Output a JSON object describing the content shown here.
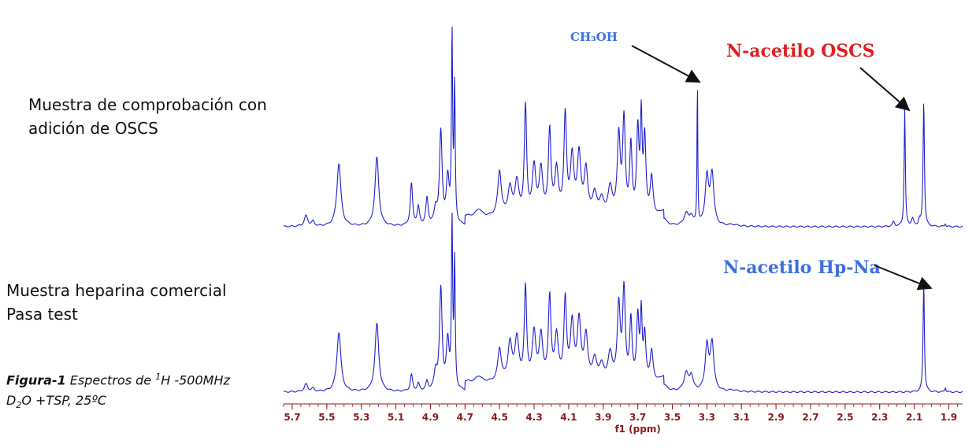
{
  "samples": [
    {
      "line1": "Muestra de comprobación con",
      "line2": "adición de OSCS"
    },
    {
      "line1": "Muestra heparina comercial",
      "line2": "Pasa test"
    }
  ],
  "caption": {
    "bold": "Figura-1",
    "text1": " Espectros de ",
    "sup": "1",
    "text2": "H -500MHz",
    "line2a": "D",
    "sub": "2",
    "line2b": "O +TSP,  25ºC"
  },
  "colors": {
    "spectrum": "#1f1fd0",
    "axis": "#8b1a1a",
    "red_annotation": "#e02020",
    "blue_annotation": "#3b6fe0"
  },
  "chart_data": {
    "type": "line",
    "xlabel": "f1 (ppm)",
    "xlim": [
      5.75,
      1.82
    ],
    "reversed_x_axis": true,
    "tick_labels": [
      "5.7",
      "5.5",
      "5.3",
      "5.1",
      "4.9",
      "4.7",
      "4.5",
      "4.3",
      "4.1",
      "3.9",
      "3.7",
      "3.5",
      "3.3",
      "3.1",
      "2.9",
      "2.7",
      "2.5",
      "2.3",
      "2.1",
      "1.9"
    ],
    "annotations": [
      {
        "text": "CH₃OH",
        "ppm": 3.35,
        "spectrum": "top",
        "color": "#3b6fe0"
      },
      {
        "text": "N-acetilo OSCS",
        "ppm": 2.15,
        "spectrum": "top",
        "color": "#e02020"
      },
      {
        "text": "N-acetilo Hp-Na",
        "ppm": 2.04,
        "spectrum": "bottom",
        "color": "#3b6fe0"
      }
    ],
    "series": [
      {
        "peaks": [
          [
            5.62,
            0.07,
            0.012
          ],
          [
            5.58,
            0.03,
            0.01
          ],
          [
            5.43,
            0.42,
            0.014
          ],
          [
            5.21,
            0.46,
            0.013
          ],
          [
            5.01,
            0.28,
            0.008
          ],
          [
            4.97,
            0.12,
            0.008
          ],
          [
            4.92,
            0.18,
            0.008
          ],
          [
            4.87,
            0.1,
            0.01
          ],
          [
            4.84,
            0.62,
            0.009
          ],
          [
            4.8,
            0.3,
            0.01
          ],
          [
            4.775,
            1.25,
            0.004
          ],
          [
            4.76,
            0.9,
            0.004
          ],
          [
            4.62,
            0.05,
            0.02
          ],
          [
            4.5,
            0.3,
            0.012
          ],
          [
            4.44,
            0.18,
            0.014
          ],
          [
            4.4,
            0.22,
            0.014
          ],
          [
            4.35,
            0.72,
            0.008
          ],
          [
            4.3,
            0.32,
            0.012
          ],
          [
            4.26,
            0.3,
            0.012
          ],
          [
            4.21,
            0.56,
            0.009
          ],
          [
            4.17,
            0.3,
            0.012
          ],
          [
            4.12,
            0.66,
            0.009
          ],
          [
            4.08,
            0.38,
            0.012
          ],
          [
            4.04,
            0.4,
            0.012
          ],
          [
            4.0,
            0.3,
            0.012
          ],
          [
            3.95,
            0.14,
            0.015
          ],
          [
            3.91,
            0.1,
            0.015
          ],
          [
            3.86,
            0.18,
            0.015
          ],
          [
            3.81,
            0.52,
            0.01
          ],
          [
            3.78,
            0.62,
            0.009
          ],
          [
            3.74,
            0.45,
            0.008
          ],
          [
            3.7,
            0.55,
            0.008
          ],
          [
            3.68,
            0.62,
            0.006
          ],
          [
            3.66,
            0.5,
            0.008
          ],
          [
            3.62,
            0.25,
            0.01
          ],
          [
            3.55,
            0.04,
            0.02
          ],
          [
            3.42,
            0.08,
            0.015
          ],
          [
            3.39,
            0.06,
            0.012
          ],
          [
            3.355,
            0.98,
            0.0025
          ],
          [
            3.3,
            0.32,
            0.012
          ],
          [
            3.27,
            0.34,
            0.012
          ],
          [
            3.15,
            0.01,
            0.03
          ],
          [
            2.22,
            0.03,
            0.008
          ],
          [
            2.155,
            0.78,
            0.004
          ],
          [
            2.11,
            0.05,
            0.008
          ],
          [
            2.07,
            0.04,
            0.006
          ],
          [
            2.045,
            0.84,
            0.0045
          ],
          [
            1.92,
            0.02,
            0.004
          ]
        ]
      },
      {
        "peaks": [
          [
            5.62,
            0.05,
            0.012
          ],
          [
            5.58,
            0.02,
            0.01
          ],
          [
            5.43,
            0.4,
            0.014
          ],
          [
            5.21,
            0.46,
            0.013
          ],
          [
            5.01,
            0.11,
            0.008
          ],
          [
            4.97,
            0.05,
            0.008
          ],
          [
            4.92,
            0.06,
            0.008
          ],
          [
            4.87,
            0.12,
            0.01
          ],
          [
            4.84,
            0.68,
            0.009
          ],
          [
            4.8,
            0.32,
            0.01
          ],
          [
            4.775,
            1.15,
            0.004
          ],
          [
            4.76,
            0.85,
            0.004
          ],
          [
            4.62,
            0.04,
            0.02
          ],
          [
            4.5,
            0.22,
            0.012
          ],
          [
            4.44,
            0.25,
            0.014
          ],
          [
            4.4,
            0.28,
            0.014
          ],
          [
            4.35,
            0.62,
            0.008
          ],
          [
            4.3,
            0.32,
            0.012
          ],
          [
            4.26,
            0.3,
            0.012
          ],
          [
            4.21,
            0.56,
            0.009
          ],
          [
            4.17,
            0.3,
            0.012
          ],
          [
            4.12,
            0.54,
            0.009
          ],
          [
            4.08,
            0.38,
            0.012
          ],
          [
            4.04,
            0.4,
            0.012
          ],
          [
            4.0,
            0.3,
            0.012
          ],
          [
            3.95,
            0.14,
            0.015
          ],
          [
            3.91,
            0.1,
            0.015
          ],
          [
            3.86,
            0.18,
            0.015
          ],
          [
            3.81,
            0.5,
            0.01
          ],
          [
            3.78,
            0.6,
            0.009
          ],
          [
            3.74,
            0.4,
            0.008
          ],
          [
            3.7,
            0.42,
            0.008
          ],
          [
            3.68,
            0.44,
            0.006
          ],
          [
            3.66,
            0.3,
            0.008
          ],
          [
            3.62,
            0.2,
            0.01
          ],
          [
            3.55,
            0.04,
            0.02
          ],
          [
            3.42,
            0.12,
            0.015
          ],
          [
            3.39,
            0.1,
            0.012
          ],
          [
            3.3,
            0.3,
            0.012
          ],
          [
            3.27,
            0.32,
            0.012
          ],
          [
            3.15,
            0.01,
            0.03
          ],
          [
            2.045,
            0.74,
            0.0045
          ],
          [
            1.92,
            0.03,
            0.004
          ]
        ]
      }
    ]
  }
}
